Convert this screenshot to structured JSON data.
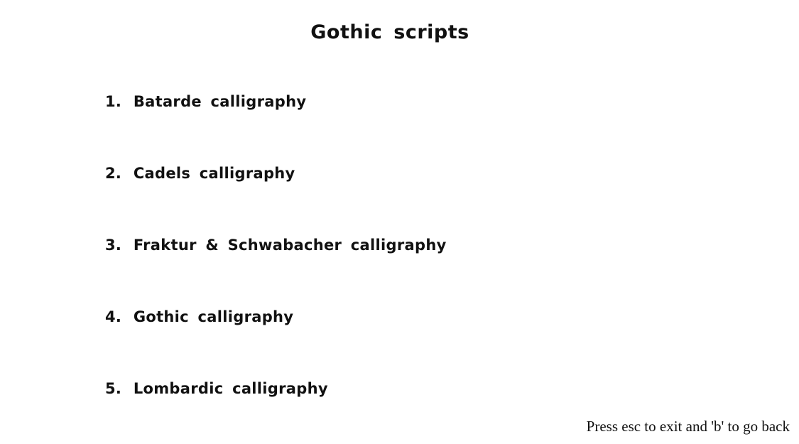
{
  "page": {
    "title": "Gothic scripts"
  },
  "menu": {
    "items": [
      {
        "number": "1.",
        "label": "Batarde calligraphy"
      },
      {
        "number": "2.",
        "label": "Cadels calligraphy"
      },
      {
        "number": "3.",
        "label": "Fraktur & Schwabacher calligraphy"
      },
      {
        "number": "4.",
        "label": "Gothic calligraphy"
      },
      {
        "number": "5.",
        "label": "Lombardic calligraphy"
      }
    ]
  },
  "footer": {
    "hint": "Press esc to exit and 'b' to go back"
  }
}
